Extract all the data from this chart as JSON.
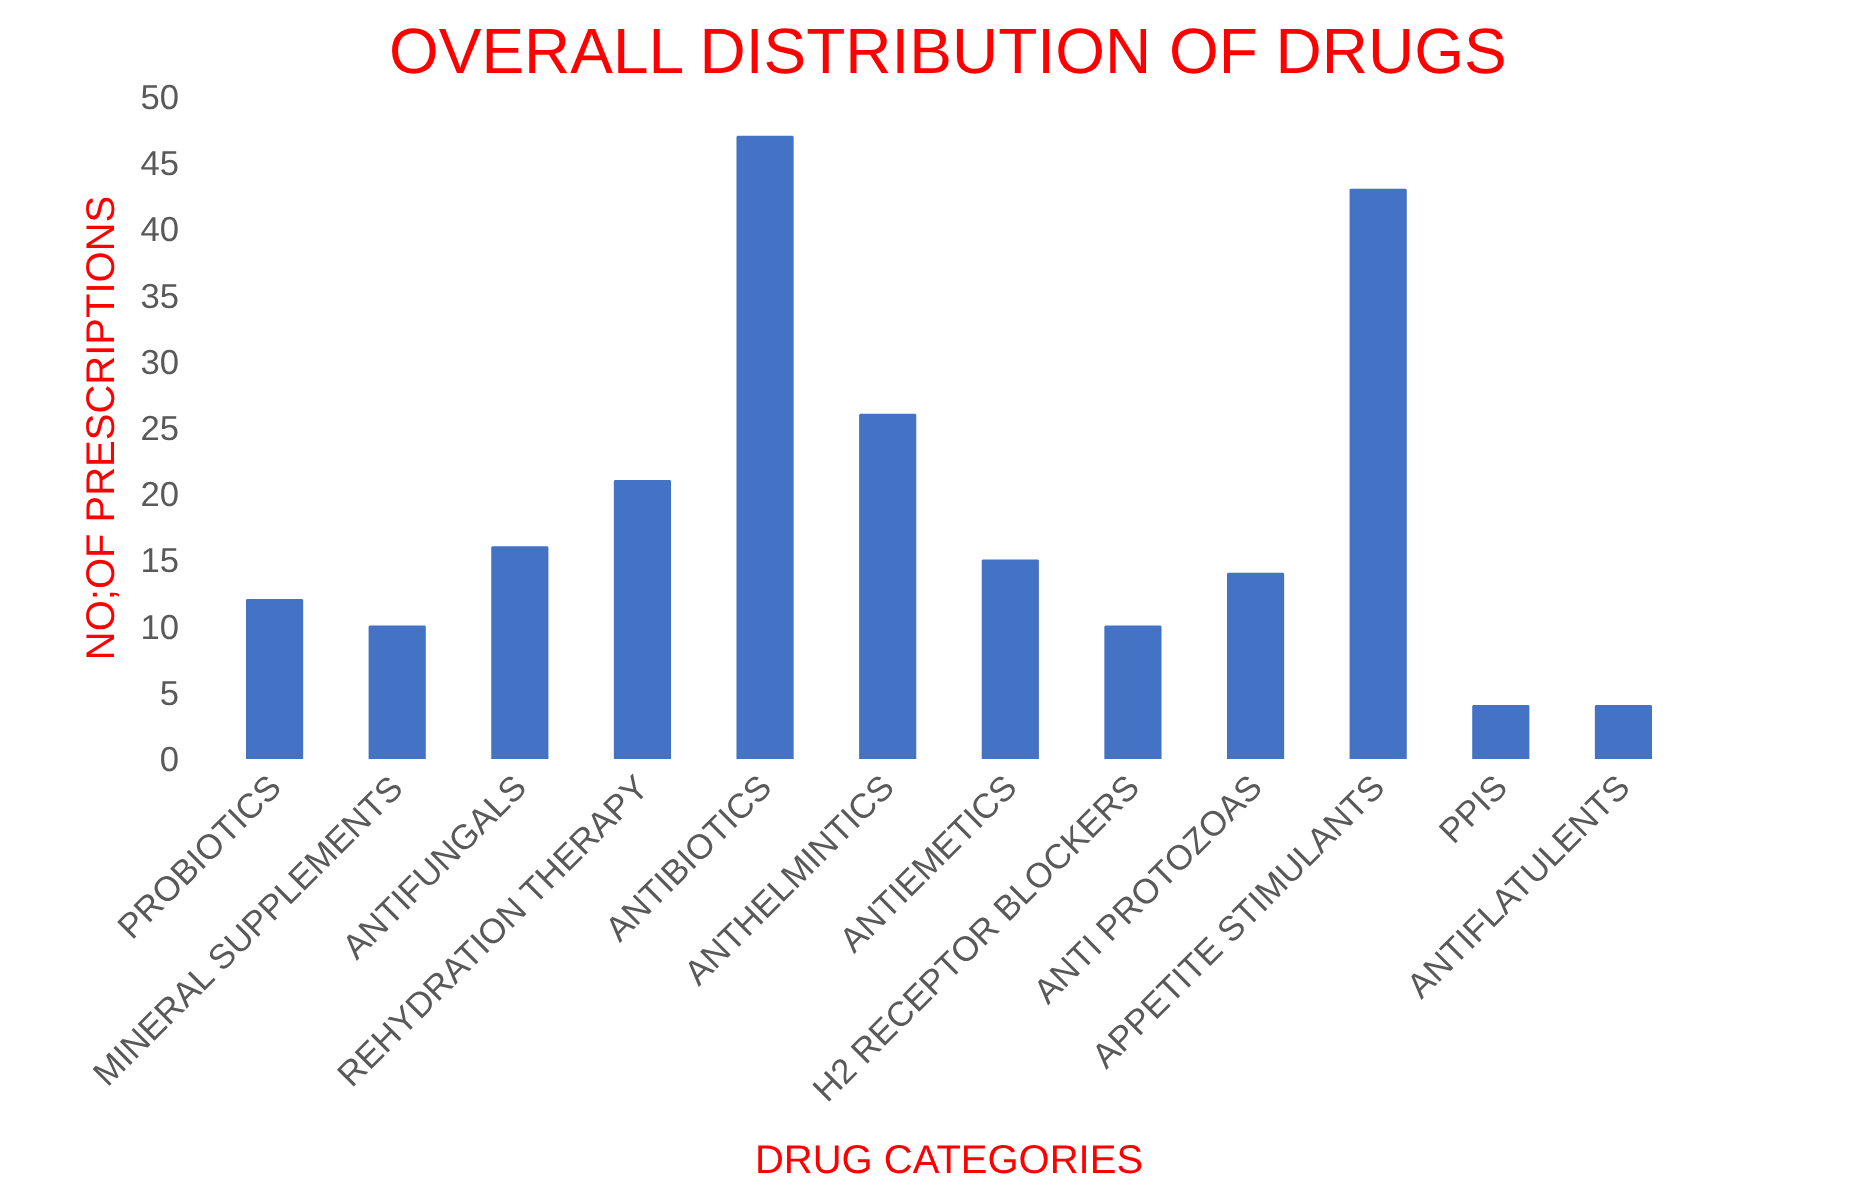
{
  "chart_data": {
    "type": "bar",
    "title": "OVERALL DISTRIBUTION OF DRUGS",
    "xlabel": "DRUG CATEGORIES",
    "ylabel": "NO;OF PRESCRIPTIONS",
    "categories": [
      "PROBIOTICS",
      "MINERAL SUPPLEMENTS",
      "ANTIFUNGALS",
      "REHYDRATION THERAPY",
      "ANTIBIOTICS",
      "ANTHELMINTICS",
      "ANTIEMETICS",
      "H2 RECEPTOR BLOCKERS",
      "ANTI PROTOZOAS",
      "APPETITE STIMULANTS",
      "PPIS",
      "ANTIFLATULENTS"
    ],
    "values": [
      12,
      10,
      16,
      21,
      47,
      26,
      15,
      10,
      14,
      43,
      4,
      4
    ],
    "color": "#4472c4",
    "ylim": [
      0,
      50
    ],
    "yticks": [
      0,
      5,
      10,
      15,
      20,
      25,
      30,
      35,
      40,
      45,
      50
    ],
    "grid": false
  }
}
